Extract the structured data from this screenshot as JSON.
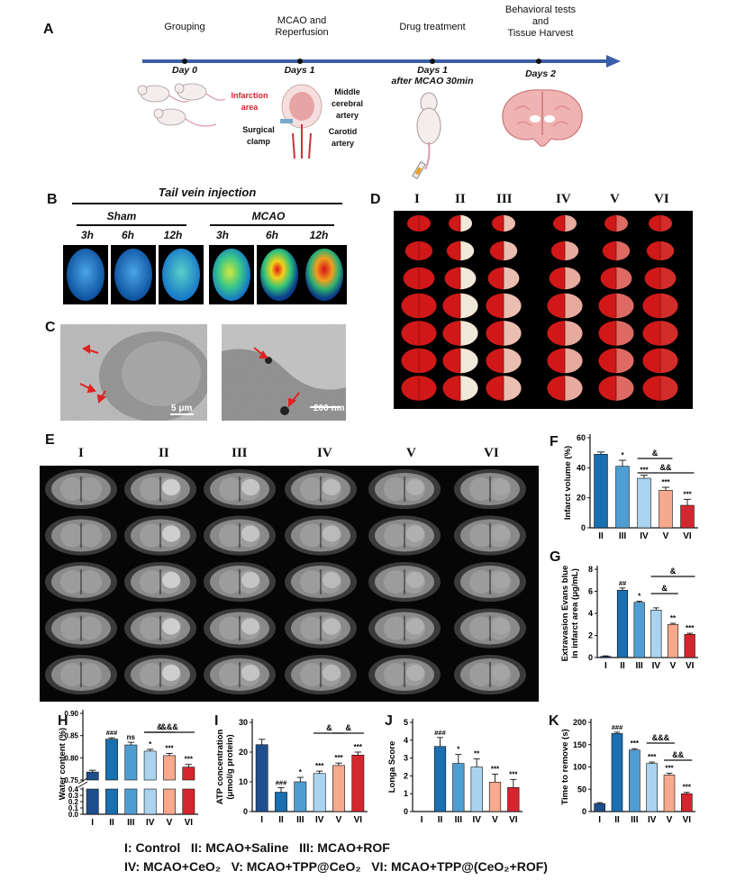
{
  "panels": {
    "A": "A",
    "B": "B",
    "C": "C",
    "D": "D",
    "E": "E",
    "F": "F",
    "G": "G",
    "H": "H",
    "I": "I",
    "J": "J",
    "K": "K"
  },
  "timeline": {
    "steps": [
      {
        "label": "Grouping",
        "day": "Day 0"
      },
      {
        "label": "MCAO and\nReperfusion",
        "day": "Days 1"
      },
      {
        "label": "Drug treatment",
        "day": "Days 1\nafter MCAO 30min"
      },
      {
        "label": "Behavioral tests\nand\nTissue Harvest",
        "day": "Days 2"
      }
    ],
    "annotations": {
      "infarction": "Infarction\narea",
      "mca": "Middle\ncerebral\nartery",
      "clamp": "Surgical\nclamp",
      "carotid": "Carotid\nartery"
    }
  },
  "imaging": {
    "title": "Tail vein injection",
    "sham": "Sham",
    "mcao": "MCAO",
    "times": [
      "3h",
      "6h",
      "12h",
      "3h",
      "6h",
      "12h"
    ]
  },
  "tem": {
    "scale1": "5 μm",
    "scale2": "200 nm"
  },
  "groups": {
    "romans": [
      "I",
      "II",
      "III",
      "IV",
      "V",
      "VI"
    ]
  },
  "legend": {
    "line1": "I: Control   II: MCAO+Saline   III: MCAO+ROF",
    "line2": "IV: MCAO+CeO₂   V: MCAO+TPP@CeO₂   VI: MCAO+TPP@(CeO₂+ROF)"
  },
  "colors": {
    "I": "#1f4e8c",
    "II": "#1a6fb0",
    "III": "#4f9ed3",
    "IV": "#a9d3ef",
    "V": "#f6a98c",
    "VI": "#d3262e"
  },
  "chart_data": [
    {
      "panel": "F",
      "type": "bar",
      "ylabel": "Infarct volume (%)",
      "ylim": [
        0,
        60
      ],
      "yticks": [
        "0",
        "20",
        "40",
        "60"
      ],
      "categories": [
        "II",
        "III",
        "IV",
        "V",
        "VI"
      ],
      "values": [
        49,
        41,
        33,
        25,
        15
      ],
      "errors": [
        1.5,
        4,
        2,
        2,
        4
      ],
      "stars": [
        "",
        "*",
        "***",
        "***",
        "***"
      ],
      "brackets": [
        {
          "label": "&",
          "from": "IV",
          "to": "V"
        },
        {
          "label": "&&",
          "from": "IV",
          "to": "VI"
        }
      ]
    },
    {
      "panel": "G",
      "type": "bar",
      "ylabel": "Extravasion Evans blue\nin infarct area (μg/mL)",
      "ylim": [
        0,
        8
      ],
      "yticks": [
        "0",
        "2",
        "4",
        "6",
        "8"
      ],
      "categories": [
        "I",
        "II",
        "III",
        "IV",
        "V",
        "VI"
      ],
      "values": [
        0.1,
        6.1,
        5.0,
        4.3,
        3.0,
        2.1
      ],
      "errors": [
        0.05,
        0.2,
        0.1,
        0.2,
        0.1,
        0.1
      ],
      "stars": [
        "",
        "##",
        "*",
        "",
        "**",
        "***"
      ],
      "brackets": [
        {
          "label": "&",
          "from": "IV",
          "to": "V"
        },
        {
          "label": "&",
          "from": "IV",
          "to": "VI"
        }
      ]
    },
    {
      "panel": "H",
      "type": "bar",
      "ylabel": "Water content (%)",
      "yticks": [
        "0.0",
        "0.1",
        "0.2",
        "0.3",
        "0.4",
        "0.75",
        "0.80",
        "0.85",
        "0.90"
      ],
      "categories": [
        "I",
        "II",
        "III",
        "IV",
        "V",
        "VI"
      ],
      "values": [
        0.768,
        0.842,
        0.829,
        0.815,
        0.805,
        0.779
      ],
      "errors": [
        0.004,
        0.003,
        0.006,
        0.004,
        0.005,
        0.006
      ],
      "stars": [
        "",
        "###",
        "ns",
        "*",
        "***",
        "***"
      ],
      "brackets": [
        {
          "label": "&",
          "from": "IV",
          "to": "V"
        },
        {
          "label": "&&&",
          "from": "IV",
          "to": "VI"
        }
      ]
    },
    {
      "panel": "I",
      "type": "bar",
      "ylabel": "ATP concentration\n(μmol/g protein)",
      "ylim": [
        0,
        30
      ],
      "yticks": [
        "0",
        "10",
        "20",
        "30"
      ],
      "categories": [
        "I",
        "II",
        "III",
        "IV",
        "V",
        "VI"
      ],
      "values": [
        22.5,
        6.5,
        10,
        12.8,
        15.5,
        19
      ],
      "errors": [
        1.8,
        1.5,
        1.5,
        0.8,
        0.8,
        1
      ],
      "stars": [
        "",
        "###",
        "*",
        "***",
        "***",
        "***"
      ],
      "brackets": [
        {
          "label": "&",
          "from": "IV",
          "to": "V"
        },
        {
          "label": "&",
          "from": "V",
          "to": "VI"
        }
      ]
    },
    {
      "panel": "J",
      "type": "bar",
      "ylabel": "Longa Score",
      "ylim": [
        0,
        5
      ],
      "yticks": [
        "0",
        "1",
        "2",
        "3",
        "4",
        "5"
      ],
      "categories": [
        "I",
        "II",
        "III",
        "IV",
        "V",
        "VI"
      ],
      "values": [
        0,
        3.65,
        2.7,
        2.5,
        1.65,
        1.35
      ],
      "errors": [
        0,
        0.5,
        0.5,
        0.45,
        0.45,
        0.45
      ],
      "stars": [
        "",
        "###",
        "*",
        "**",
        "***",
        "***"
      ],
      "brackets": []
    },
    {
      "panel": "K",
      "type": "bar",
      "ylabel": "Time to remove (s)",
      "ylim": [
        0,
        200
      ],
      "yticks": [
        "0",
        "50",
        "100",
        "150",
        "200"
      ],
      "categories": [
        "I",
        "II",
        "III",
        "IV",
        "V",
        "VI"
      ],
      "values": [
        18,
        175,
        138,
        108,
        82,
        40
      ],
      "errors": [
        2,
        3,
        3,
        3,
        4,
        3
      ],
      "stars": [
        "",
        "###",
        "***",
        "***",
        "***",
        "***"
      ],
      "brackets": [
        {
          "label": "&&&",
          "from": "IV",
          "to": "V"
        },
        {
          "label": "&&",
          "from": "V",
          "to": "VI"
        }
      ]
    }
  ]
}
